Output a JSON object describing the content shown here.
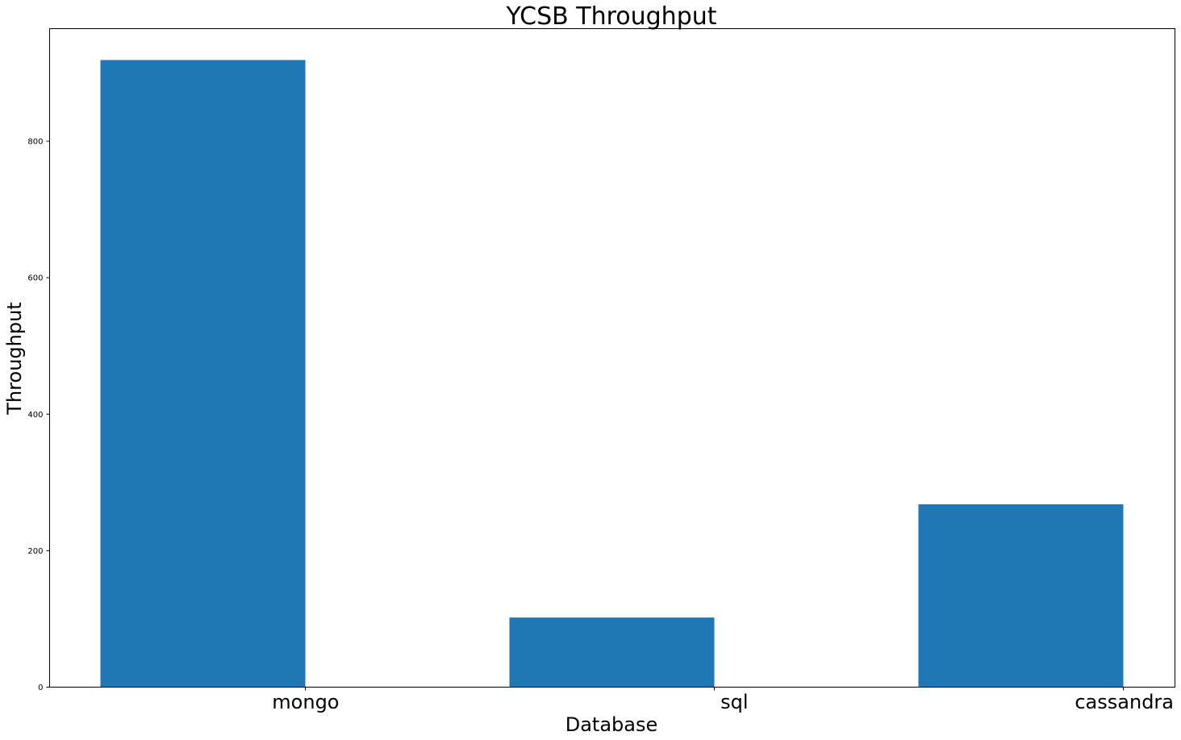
{
  "chart_data": {
    "type": "bar",
    "title": "YCSB Throughput",
    "xlabel": "Database",
    "ylabel": "Throughput",
    "categories": [
      "mongo",
      "sql",
      "cassandra"
    ],
    "values": [
      919,
      102,
      268
    ],
    "ylim": [
      0,
      965
    ],
    "yticks": [
      0,
      200,
      400,
      600,
      800
    ],
    "bar_color": "#1f77b4",
    "grid": false,
    "legend": "none"
  }
}
